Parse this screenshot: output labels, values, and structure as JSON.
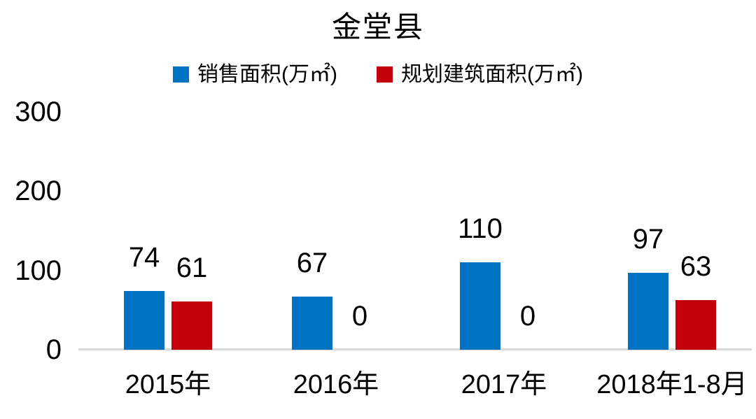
{
  "chart_data": {
    "type": "bar",
    "title": "金堂县",
    "categories": [
      "2015年",
      "2016年",
      "2017年",
      "2018年1-8月"
    ],
    "series": [
      {
        "name": "销售面积(万㎡)",
        "color": "#0073C2",
        "values": [
          74,
          67,
          110,
          97
        ]
      },
      {
        "name": "规划建筑面积(万㎡)",
        "color": "#C4000A",
        "values": [
          61,
          0,
          0,
          63
        ]
      }
    ],
    "ylim": [
      0,
      300
    ],
    "yticks": [
      0,
      100,
      200,
      300
    ],
    "grid": false,
    "legend_position": "top",
    "data_labels": true,
    "axis_line_color": "#D9D9D9",
    "text_color": "#000000",
    "background_color": "#FFFFFF"
  }
}
